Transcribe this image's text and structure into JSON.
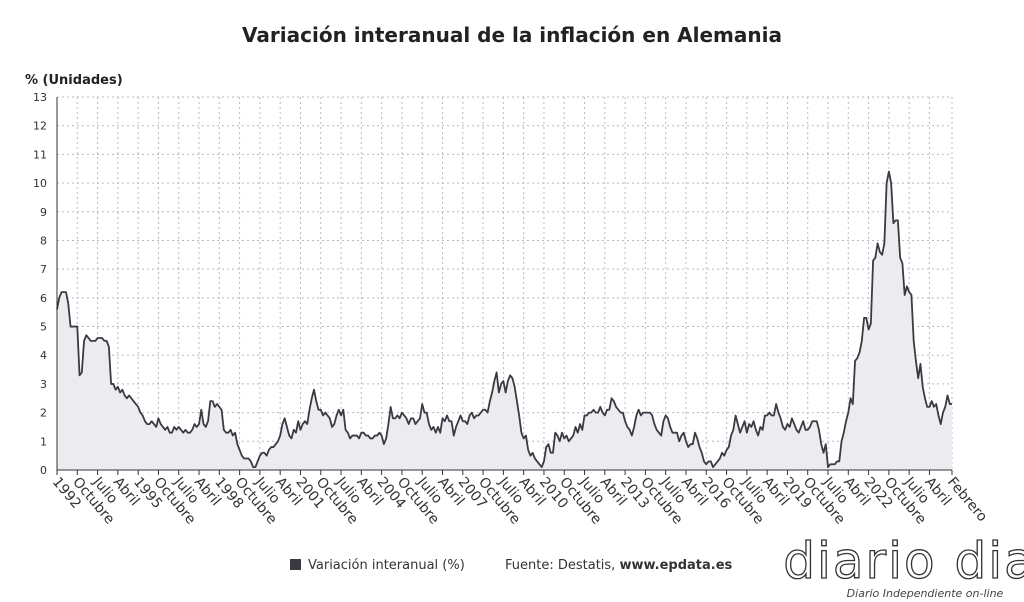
{
  "chart_data": {
    "type": "line",
    "title": "Variación interanual de la inflación en Alemania",
    "y_label": "% (Unidades)",
    "categories": [
      "1992",
      null,
      null,
      null,
      null,
      null,
      null,
      null,
      null,
      "Octubre",
      null,
      null,
      null,
      null,
      null,
      null,
      null,
      null,
      "Julio",
      null,
      null,
      null,
      null,
      null,
      null,
      null,
      null,
      "Abril",
      null,
      null,
      null,
      null,
      null,
      null,
      null,
      null,
      "1995",
      null,
      null,
      null,
      null,
      null,
      null,
      null,
      null,
      "Octubre",
      null,
      null,
      null,
      null,
      null,
      null,
      null,
      null,
      "Julio",
      null,
      null,
      null,
      null,
      null,
      null,
      null,
      null,
      "Abril",
      null,
      null,
      null,
      null,
      null,
      null,
      null,
      null,
      "1998",
      null,
      null,
      null,
      null,
      null,
      null,
      null,
      null,
      "Octubre",
      null,
      null,
      null,
      null,
      null,
      null,
      null,
      null,
      "Julio",
      null,
      null,
      null,
      null,
      null,
      null,
      null,
      null,
      "Abril",
      null,
      null,
      null,
      null,
      null,
      null,
      null,
      null,
      "2001",
      null,
      null,
      null,
      null,
      null,
      null,
      null,
      null,
      "Octubre",
      null,
      null,
      null,
      null,
      null,
      null,
      null,
      null,
      "Julio",
      null,
      null,
      null,
      null,
      null,
      null,
      null,
      null,
      "Abril",
      null,
      null,
      null,
      null,
      null,
      null,
      null,
      null,
      "2004",
      null,
      null,
      null,
      null,
      null,
      null,
      null,
      null,
      "Octubre",
      null,
      null,
      null,
      null,
      null,
      null,
      null,
      null,
      "Julio",
      null,
      null,
      null,
      null,
      null,
      null,
      null,
      null,
      "Abril",
      null,
      null,
      null,
      null,
      null,
      null,
      null,
      null,
      "2007",
      null,
      null,
      null,
      null,
      null,
      null,
      null,
      null,
      "Octubre",
      null,
      null,
      null,
      null,
      null,
      null,
      null,
      null,
      "Julio",
      null,
      null,
      null,
      null,
      null,
      null,
      null,
      null,
      "Abril",
      null,
      null,
      null,
      null,
      null,
      null,
      null,
      null,
      "2010",
      null,
      null,
      null,
      null,
      null,
      null,
      null,
      null,
      "Octubre",
      null,
      null,
      null,
      null,
      null,
      null,
      null,
      null,
      "Julio",
      null,
      null,
      null,
      null,
      null,
      null,
      null,
      null,
      "Abril",
      null,
      null,
      null,
      null,
      null,
      null,
      null,
      null,
      "2013",
      null,
      null,
      null,
      null,
      null,
      null,
      null,
      null,
      "Octubre",
      null,
      null,
      null,
      null,
      null,
      null,
      null,
      null,
      "Julio",
      null,
      null,
      null,
      null,
      null,
      null,
      null,
      null,
      "Abril",
      null,
      null,
      null,
      null,
      null,
      null,
      null,
      null,
      "2016",
      null,
      null,
      null,
      null,
      null,
      null,
      null,
      null,
      "Octubre",
      null,
      null,
      null,
      null,
      null,
      null,
      null,
      null,
      "Julio",
      null,
      null,
      null,
      null,
      null,
      null,
      null,
      null,
      "Abril",
      null,
      null,
      null,
      null,
      null,
      null,
      null,
      null,
      "2019",
      null,
      null,
      null,
      null,
      null,
      null,
      null,
      null,
      "Octubre",
      null,
      null,
      null,
      null,
      null,
      null,
      null,
      null,
      "Julio",
      null,
      null,
      null,
      null,
      null,
      null,
      null,
      null,
      "Abril",
      null,
      null,
      null,
      null,
      null,
      null,
      null,
      null,
      "2022",
      null,
      null,
      null,
      null,
      null,
      null,
      null,
      null,
      "Octubre",
      null,
      null,
      null,
      null,
      null,
      null,
      null,
      null,
      "Julio",
      null,
      null,
      null,
      null,
      null,
      null,
      null,
      null,
      "Abril",
      null,
      null,
      null,
      null,
      null,
      null,
      null,
      null,
      null,
      "Febrero"
    ],
    "series": [
      {
        "name": "Variación interanual (%)",
        "color": "#3a3a42",
        "values": [
          5.6,
          6.0,
          6.2,
          6.2,
          6.2,
          5.8,
          5.0,
          5.0,
          5.0,
          5.0,
          3.3,
          3.4,
          4.5,
          4.7,
          4.6,
          4.5,
          4.5,
          4.5,
          4.6,
          4.6,
          4.6,
          4.5,
          4.5,
          4.3,
          3.0,
          3.0,
          2.8,
          2.9,
          2.7,
          2.8,
          2.6,
          2.5,
          2.6,
          2.5,
          2.4,
          2.3,
          2.2,
          2.0,
          1.9,
          1.7,
          1.6,
          1.6,
          1.7,
          1.6,
          1.5,
          1.8,
          1.6,
          1.5,
          1.4,
          1.5,
          1.3,
          1.3,
          1.5,
          1.4,
          1.5,
          1.4,
          1.3,
          1.4,
          1.3,
          1.3,
          1.4,
          1.6,
          1.5,
          1.6,
          2.1,
          1.6,
          1.5,
          1.7,
          2.4,
          2.4,
          2.2,
          2.3,
          2.2,
          2.1,
          1.4,
          1.3,
          1.3,
          1.4,
          1.2,
          1.3,
          0.9,
          0.7,
          0.5,
          0.4,
          0.4,
          0.4,
          0.3,
          0.1,
          0.1,
          0.3,
          0.5,
          0.6,
          0.6,
          0.5,
          0.7,
          0.8,
          0.8,
          0.9,
          1.0,
          1.2,
          1.6,
          1.8,
          1.5,
          1.2,
          1.1,
          1.4,
          1.3,
          1.7,
          1.4,
          1.6,
          1.7,
          1.6,
          2.1,
          2.5,
          2.8,
          2.4,
          2.1,
          2.1,
          1.9,
          2.0,
          1.9,
          1.8,
          1.5,
          1.6,
          1.9,
          2.1,
          1.9,
          2.1,
          1.4,
          1.3,
          1.1,
          1.2,
          1.2,
          1.2,
          1.1,
          1.3,
          1.3,
          1.2,
          1.2,
          1.1,
          1.1,
          1.2,
          1.2,
          1.3,
          1.2,
          0.9,
          1.1,
          1.6,
          2.2,
          1.8,
          1.8,
          1.9,
          1.8,
          2.0,
          1.9,
          1.8,
          1.6,
          1.8,
          1.8,
          1.6,
          1.7,
          1.8,
          2.3,
          2.0,
          2.0,
          1.6,
          1.4,
          1.5,
          1.3,
          1.5,
          1.3,
          1.8,
          1.7,
          1.9,
          1.7,
          1.7,
          1.2,
          1.5,
          1.7,
          1.9,
          1.7,
          1.7,
          1.6,
          1.9,
          2.0,
          1.8,
          1.9,
          1.9,
          2.0,
          2.1,
          2.1,
          2.0,
          2.4,
          2.7,
          3.1,
          3.4,
          2.7,
          3.0,
          3.1,
          2.7,
          3.1,
          3.3,
          3.2,
          2.9,
          2.4,
          1.9,
          1.3,
          1.1,
          1.2,
          0.7,
          0.5,
          0.6,
          0.4,
          0.3,
          0.2,
          0.1,
          0.3,
          0.8,
          0.9,
          0.6,
          0.6,
          1.3,
          1.2,
          1.0,
          1.3,
          1.1,
          1.2,
          1.0,
          1.1,
          1.2,
          1.5,
          1.3,
          1.6,
          1.4,
          1.9,
          1.9,
          2.0,
          2.0,
          2.1,
          2.0,
          2.0,
          2.2,
          2.0,
          1.9,
          2.1,
          2.1,
          2.5,
          2.4,
          2.2,
          2.1,
          2.0,
          2.0,
          1.7,
          1.5,
          1.4,
          1.2,
          1.5,
          1.9,
          2.1,
          1.9,
          2.0,
          2.0,
          2.0,
          2.0,
          1.9,
          1.6,
          1.4,
          1.3,
          1.2,
          1.7,
          1.9,
          1.8,
          1.5,
          1.3,
          1.3,
          1.3,
          1.0,
          1.2,
          1.3,
          1.0,
          0.8,
          0.9,
          0.9,
          1.3,
          1.1,
          0.8,
          0.6,
          0.3,
          0.2,
          0.3,
          0.3,
          0.1,
          0.2,
          0.3,
          0.4,
          0.6,
          0.5,
          0.7,
          0.8,
          1.2,
          1.4,
          1.9,
          1.6,
          1.3,
          1.5,
          1.7,
          1.3,
          1.6,
          1.5,
          1.7,
          1.4,
          1.2,
          1.5,
          1.4,
          1.9,
          1.9,
          2.0,
          1.9,
          1.9,
          2.3,
          2.0,
          1.8,
          1.5,
          1.4,
          1.6,
          1.5,
          1.8,
          1.6,
          1.4,
          1.3,
          1.5,
          1.7,
          1.4,
          1.4,
          1.5,
          1.7,
          1.7,
          1.7,
          1.4,
          0.9,
          0.6,
          0.9,
          0.1,
          0.2,
          0.2,
          0.2,
          0.3,
          0.3,
          1.0,
          1.3,
          1.7,
          2.0,
          2.5,
          2.3,
          3.8,
          3.9,
          4.1,
          4.5,
          5.3,
          5.3,
          4.9,
          5.1,
          7.3,
          7.4,
          7.9,
          7.6,
          7.5,
          7.9,
          10.0,
          10.4,
          10.0,
          8.6,
          8.7,
          8.7,
          7.4,
          7.2,
          6.1,
          6.4,
          6.2,
          6.1,
          4.5,
          3.8,
          3.2,
          3.7,
          2.9,
          2.5,
          2.2,
          2.2,
          2.4,
          2.2,
          2.3,
          1.9,
          1.6,
          2.0,
          2.2,
          2.6,
          2.3,
          2.3
        ]
      }
    ],
    "ylim": [
      0,
      13
    ],
    "yticks": [
      0,
      1,
      2,
      3,
      4,
      5,
      6,
      7,
      8,
      9,
      10,
      11,
      12,
      13
    ],
    "grid": true,
    "source": "Fuente: Destatis,",
    "source_link": "www.epdata.es"
  },
  "watermark": {
    "brand": "diario dia",
    "tagline": "Diario Independiente on-line"
  }
}
